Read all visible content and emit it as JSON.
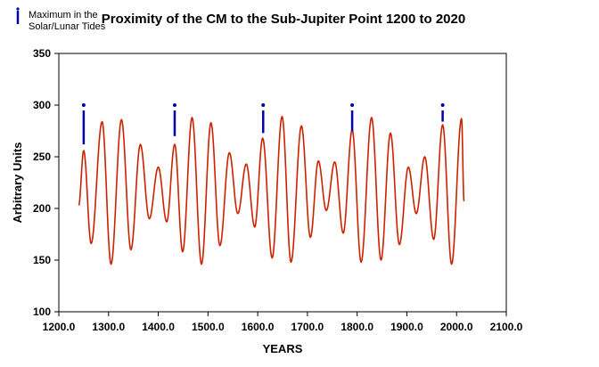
{
  "chart_data": {
    "type": "line",
    "title": "Proximity of the CM to the Sub-Jupiter Point 1200 to 2020",
    "xlabel": "YEARS",
    "ylabel": "Arbitrary Units",
    "xlim": [
      1200,
      2100
    ],
    "ylim": [
      100,
      350
    ],
    "x_ticks": [
      "1200.0",
      "1300.0",
      "1400.0",
      "1500.0",
      "1600.0",
      "1700.0",
      "1800.0",
      "1900.0",
      "2000.0",
      "2100.0"
    ],
    "x_tick_values": [
      1200,
      1300,
      1400,
      1500,
      1600,
      1700,
      1800,
      1900,
      2000,
      2100
    ],
    "y_ticks": [
      "100",
      "150",
      "200",
      "250",
      "300",
      "350"
    ],
    "y_tick_values": [
      100,
      150,
      200,
      250,
      300,
      350
    ],
    "grid": false,
    "legend": {
      "position": "top-left",
      "label_line1": "Maximum in the",
      "label_line2": "Solar/Lunar Tides"
    },
    "series": [
      {
        "name": "Proximity",
        "color": "#cc2200",
        "extrema": [
          [
            1240,
            203
          ],
          [
            1250,
            256
          ],
          [
            1265,
            166
          ],
          [
            1287,
            284
          ],
          [
            1305,
            146
          ],
          [
            1326,
            286
          ],
          [
            1345,
            160
          ],
          [
            1364,
            262
          ],
          [
            1382,
            190
          ],
          [
            1400,
            240
          ],
          [
            1417,
            187
          ],
          [
            1433,
            262
          ],
          [
            1449,
            158
          ],
          [
            1468,
            288
          ],
          [
            1487,
            146
          ],
          [
            1506,
            283
          ],
          [
            1524,
            164
          ],
          [
            1543,
            254
          ],
          [
            1560,
            195
          ],
          [
            1577,
            243
          ],
          [
            1594,
            182
          ],
          [
            1610,
            268
          ],
          [
            1629,
            152
          ],
          [
            1649,
            289
          ],
          [
            1667,
            148
          ],
          [
            1688,
            280
          ],
          [
            1706,
            172
          ],
          [
            1722,
            246
          ],
          [
            1738,
            198
          ],
          [
            1755,
            245
          ],
          [
            1772,
            176
          ],
          [
            1790,
            276
          ],
          [
            1808,
            148
          ],
          [
            1829,
            288
          ],
          [
            1848,
            150
          ],
          [
            1867,
            273
          ],
          [
            1885,
            165
          ],
          [
            1903,
            240
          ],
          [
            1919,
            195
          ],
          [
            1936,
            250
          ],
          [
            1954,
            170
          ],
          [
            1972,
            281
          ],
          [
            1990,
            146
          ],
          [
            2010,
            287
          ],
          [
            2015,
            207
          ]
        ]
      },
      {
        "name": "Maximum in the Solar/Lunar Tides",
        "color": "#0000aa",
        "markers": [
          {
            "x": 1250,
            "top": 300,
            "bottom": 262
          },
          {
            "x": 1433,
            "top": 300,
            "bottom": 270
          },
          {
            "x": 1611,
            "top": 300,
            "bottom": 273
          },
          {
            "x": 1790,
            "top": 300,
            "bottom": 275
          },
          {
            "x": 1972,
            "top": 300,
            "bottom": 284
          }
        ]
      }
    ]
  }
}
